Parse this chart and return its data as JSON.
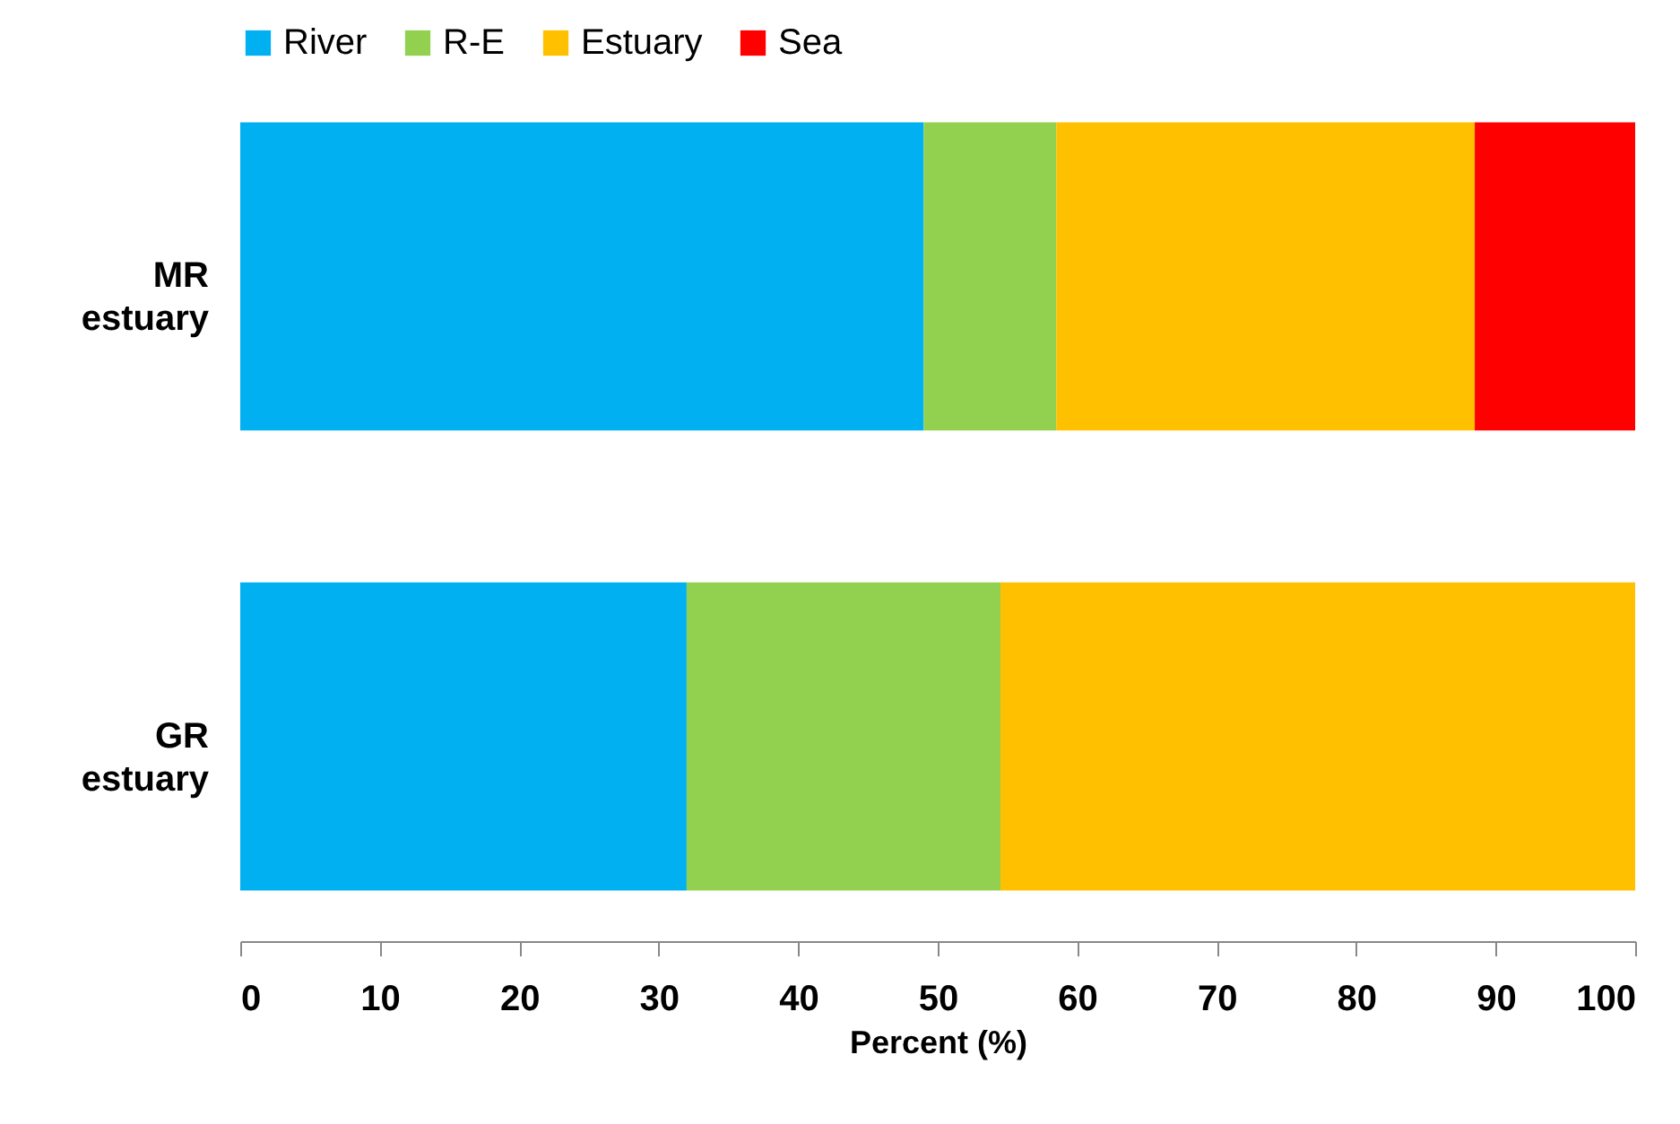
{
  "chart_data": {
    "type": "bar",
    "orientation": "horizontal",
    "stacked": true,
    "xlabel": "Percent (%)",
    "categories": [
      "MR estuary",
      "GR estuary"
    ],
    "series": [
      {
        "name": "River",
        "color": "#00b0f0",
        "values": [
          49,
          32
        ]
      },
      {
        "name": "R-E",
        "color": "#92d050",
        "values": [
          9.5,
          22.5
        ]
      },
      {
        "name": "Estuary",
        "color": "#ffc000",
        "values": [
          30,
          45.5
        ]
      },
      {
        "name": "Sea",
        "color": "#ff0000",
        "values": [
          11.5,
          null
        ]
      }
    ],
    "xlim": [
      0,
      100
    ],
    "xticks": [
      0,
      10,
      20,
      30,
      40,
      50,
      60,
      70,
      80,
      90,
      100
    ],
    "grid": false,
    "legend": "top"
  }
}
